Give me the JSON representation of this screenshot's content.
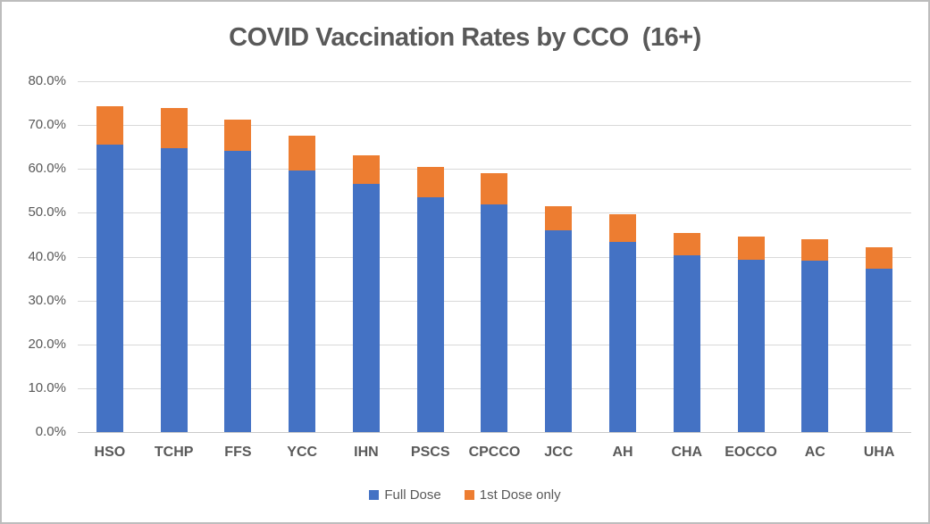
{
  "chart_data": {
    "type": "bar",
    "stacked": true,
    "title": "COVID Vaccination Rates by CCO  (16+)",
    "categories": [
      "HSO",
      "TCHP",
      "FFS",
      "YCC",
      "IHN",
      "PSCS",
      "CPCCO",
      "JCC",
      "AH",
      "CHA",
      "EOCCO",
      "AC",
      "UHA"
    ],
    "series": [
      {
        "name": "Full Dose",
        "color": "#4472C4",
        "values": [
          65.6,
          64.7,
          64.2,
          59.7,
          56.6,
          53.5,
          51.9,
          46.0,
          43.3,
          40.4,
          39.3,
          39.1,
          37.2
        ]
      },
      {
        "name": "1st Dose only",
        "color": "#ED7D31",
        "values": [
          8.8,
          9.1,
          7.1,
          7.8,
          6.5,
          7.0,
          7.2,
          5.6,
          6.3,
          5.1,
          5.3,
          4.8,
          5.0
        ]
      }
    ],
    "stack_totals": [
      74.4,
      73.8,
      71.3,
      67.5,
      63.1,
      60.5,
      59.1,
      51.6,
      49.6,
      45.5,
      44.6,
      43.9,
      42.2
    ],
    "xlabel": "",
    "ylabel": "",
    "ylim": [
      0,
      80
    ],
    "ytick_step": 10,
    "ytick_labels": [
      "0.0%",
      "10.0%",
      "20.0%",
      "30.0%",
      "40.0%",
      "50.0%",
      "60.0%",
      "70.0%",
      "80.0%"
    ],
    "grid": true,
    "legend_position": "bottom"
  },
  "colors": {
    "full_dose": "#4472C4",
    "first_dose_only": "#ED7D31",
    "gridline": "#d9d9d9",
    "axis_text": "#595959",
    "title_text": "#595959",
    "frame_border": "#bdbdbd",
    "background": "#ffffff"
  }
}
